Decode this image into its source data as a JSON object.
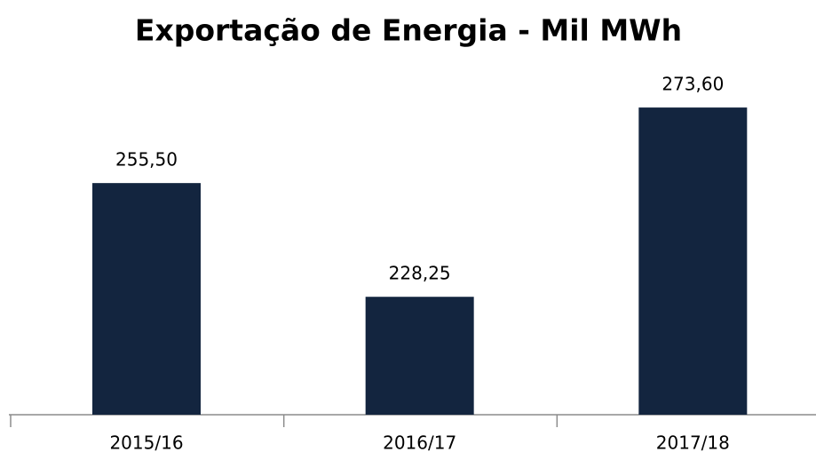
{
  "chart_data": {
    "type": "bar",
    "title": "Exportação de Energia - Mil MWh",
    "categories": [
      "2015/16",
      "2016/17",
      "2017/18"
    ],
    "values": [
      255.5,
      228.25,
      273.6
    ],
    "value_labels": [
      "255,50",
      "228,25",
      "273,60"
    ],
    "color": "#13253f",
    "ylim": [
      200,
      280
    ]
  }
}
